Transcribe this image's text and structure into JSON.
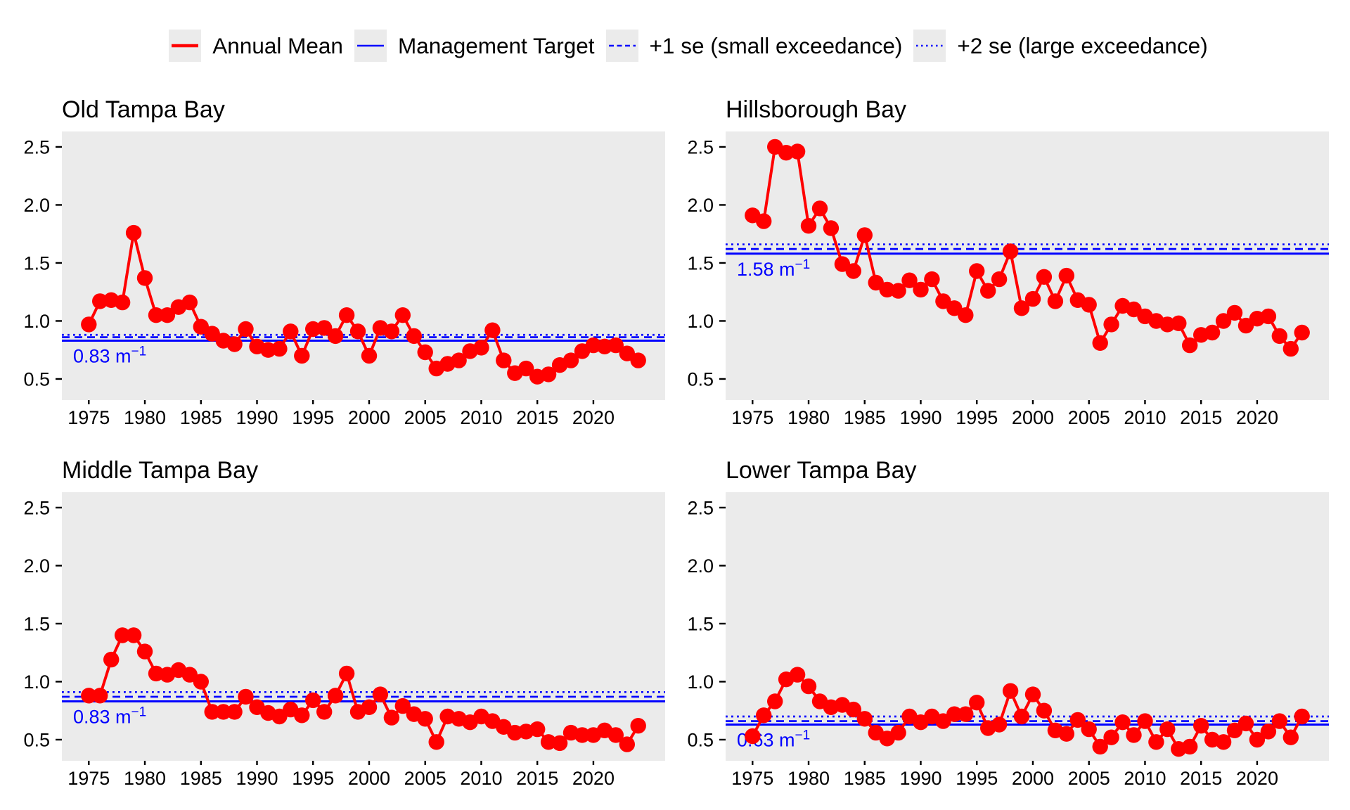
{
  "colors": {
    "series": "#FF0000",
    "reference": "#0000FF",
    "panel_background": "#EBEBEB",
    "legend_key_background": "#EBEBEB",
    "text": "#000000"
  },
  "legend": {
    "items": [
      {
        "label": "Annual Mean",
        "swatch": "red-solid"
      },
      {
        "label": "Management Target",
        "swatch": "blue-solid"
      },
      {
        "label": "+1 se (small exceedance)",
        "swatch": "blue-dashed"
      },
      {
        "label": "+2 se (large exceedance)",
        "swatch": "blue-dotted"
      }
    ]
  },
  "chart_data": [
    {
      "type": "line",
      "title": "Old Tampa Bay",
      "series_name": "Annual Mean",
      "x": [
        1975,
        1976,
        1977,
        1978,
        1979,
        1980,
        1981,
        1982,
        1983,
        1984,
        1985,
        1986,
        1987,
        1988,
        1989,
        1990,
        1991,
        1992,
        1993,
        1994,
        1995,
        1996,
        1997,
        1998,
        1999,
        2000,
        2001,
        2002,
        2003,
        2004,
        2005,
        2006,
        2007,
        2008,
        2009,
        2010,
        2011,
        2012,
        2013,
        2014,
        2015,
        2016,
        2017,
        2018,
        2019,
        2020,
        2021,
        2022,
        2023,
        2024
      ],
      "values": [
        0.97,
        1.17,
        1.18,
        1.16,
        1.76,
        1.37,
        1.05,
        1.05,
        1.12,
        1.16,
        0.95,
        0.89,
        0.83,
        0.8,
        0.93,
        0.78,
        0.75,
        0.76,
        0.91,
        0.7,
        0.93,
        0.94,
        0.87,
        1.05,
        0.91,
        0.7,
        0.94,
        0.91,
        1.05,
        0.87,
        0.73,
        0.59,
        0.63,
        0.66,
        0.74,
        0.77,
        0.92,
        0.66,
        0.55,
        0.59,
        0.52,
        0.54,
        0.62,
        0.66,
        0.74,
        0.79,
        0.78,
        0.79,
        0.72,
        0.66
      ],
      "management_target": 0.83,
      "plus1se": 0.86,
      "plus2se": 0.88,
      "annotation": {
        "text": "0.83 m",
        "sup": "−1"
      },
      "x_tick_labels": [
        "1975",
        "1980",
        "1985",
        "1990",
        "1995",
        "2000",
        "2005",
        "2010",
        "2015",
        "2020"
      ],
      "y_tick_labels": [
        "0.5",
        "1.0",
        "1.5",
        "2.0",
        "2.5"
      ],
      "xlim": [
        1972.6,
        2026.4
      ],
      "ylim": [
        0.318,
        2.633
      ],
      "grid": false,
      "legend_position": "top"
    },
    {
      "type": "line",
      "title": "Hillsborough Bay",
      "series_name": "Annual Mean",
      "x": [
        1975,
        1976,
        1977,
        1978,
        1979,
        1980,
        1981,
        1982,
        1983,
        1984,
        1985,
        1986,
        1987,
        1988,
        1989,
        1990,
        1991,
        1992,
        1993,
        1994,
        1995,
        1996,
        1997,
        1998,
        1999,
        2000,
        2001,
        2002,
        2003,
        2004,
        2005,
        2006,
        2007,
        2008,
        2009,
        2010,
        2011,
        2012,
        2013,
        2014,
        2015,
        2016,
        2017,
        2018,
        2019,
        2020,
        2021,
        2022,
        2023,
        2024
      ],
      "values": [
        1.91,
        1.86,
        2.5,
        2.45,
        2.46,
        1.82,
        1.97,
        1.8,
        1.49,
        1.43,
        1.74,
        1.33,
        1.27,
        1.26,
        1.35,
        1.27,
        1.36,
        1.17,
        1.11,
        1.05,
        1.43,
        1.26,
        1.36,
        1.6,
        1.11,
        1.19,
        1.38,
        1.17,
        1.39,
        1.18,
        1.14,
        0.81,
        0.97,
        1.13,
        1.1,
        1.04,
        1.0,
        0.97,
        0.98,
        0.79,
        0.88,
        0.9,
        1.0,
        1.07,
        0.96,
        1.02,
        1.04,
        0.87,
        0.76,
        0.9
      ],
      "management_target": 1.58,
      "plus1se": 1.62,
      "plus2se": 1.66,
      "annotation": {
        "text": "1.58 m",
        "sup": "−1"
      },
      "x_tick_labels": [
        "1975",
        "1980",
        "1985",
        "1990",
        "1995",
        "2000",
        "2005",
        "2010",
        "2015",
        "2020"
      ],
      "y_tick_labels": [
        "0.5",
        "1.0",
        "1.5",
        "2.0",
        "2.5"
      ],
      "xlim": [
        1972.6,
        2026.4
      ],
      "ylim": [
        0.318,
        2.633
      ],
      "grid": false,
      "legend_position": "top"
    },
    {
      "type": "line",
      "title": "Middle Tampa Bay",
      "series_name": "Annual Mean",
      "x": [
        1975,
        1976,
        1977,
        1978,
        1979,
        1980,
        1981,
        1982,
        1983,
        1984,
        1985,
        1986,
        1987,
        1988,
        1989,
        1990,
        1991,
        1992,
        1993,
        1994,
        1995,
        1996,
        1997,
        1998,
        1999,
        2000,
        2001,
        2002,
        2003,
        2004,
        2005,
        2006,
        2007,
        2008,
        2009,
        2010,
        2011,
        2012,
        2013,
        2014,
        2015,
        2016,
        2017,
        2018,
        2019,
        2020,
        2021,
        2022,
        2023,
        2024
      ],
      "values": [
        0.88,
        0.88,
        1.19,
        1.4,
        1.4,
        1.26,
        1.07,
        1.06,
        1.1,
        1.06,
        1.0,
        0.74,
        0.74,
        0.74,
        0.87,
        0.78,
        0.73,
        0.7,
        0.76,
        0.71,
        0.84,
        0.74,
        0.88,
        1.07,
        0.74,
        0.78,
        0.89,
        0.69,
        0.79,
        0.72,
        0.68,
        0.48,
        0.7,
        0.68,
        0.65,
        0.7,
        0.66,
        0.61,
        0.56,
        0.57,
        0.59,
        0.48,
        0.47,
        0.56,
        0.54,
        0.54,
        0.58,
        0.54,
        0.46,
        0.62
      ],
      "management_target": 0.83,
      "plus1se": 0.87,
      "plus2se": 0.91,
      "annotation": {
        "text": "0.83 m",
        "sup": "−1"
      },
      "x_tick_labels": [
        "1975",
        "1980",
        "1985",
        "1990",
        "1995",
        "2000",
        "2005",
        "2010",
        "2015",
        "2020"
      ],
      "y_tick_labels": [
        "0.5",
        "1.0",
        "1.5",
        "2.0",
        "2.5"
      ],
      "xlim": [
        1972.6,
        2026.4
      ],
      "ylim": [
        0.318,
        2.633
      ],
      "grid": false,
      "legend_position": "top"
    },
    {
      "type": "line",
      "title": "Lower Tampa Bay",
      "series_name": "Annual Mean",
      "x": [
        1975,
        1976,
        1977,
        1978,
        1979,
        1980,
        1981,
        1982,
        1983,
        1984,
        1985,
        1986,
        1987,
        1988,
        1989,
        1990,
        1991,
        1992,
        1993,
        1994,
        1995,
        1996,
        1997,
        1998,
        1999,
        2000,
        2001,
        2002,
        2003,
        2004,
        2005,
        2006,
        2007,
        2008,
        2009,
        2010,
        2011,
        2012,
        2013,
        2014,
        2015,
        2016,
        2017,
        2018,
        2019,
        2020,
        2021,
        2022,
        2023,
        2024
      ],
      "values": [
        0.53,
        0.71,
        0.83,
        1.02,
        1.06,
        0.96,
        0.83,
        0.78,
        0.8,
        0.76,
        0.68,
        0.56,
        0.51,
        0.56,
        0.7,
        0.65,
        0.7,
        0.66,
        0.72,
        0.72,
        0.82,
        0.6,
        0.63,
        0.92,
        0.7,
        0.89,
        0.75,
        0.58,
        0.55,
        0.67,
        0.59,
        0.44,
        0.52,
        0.65,
        0.54,
        0.66,
        0.48,
        0.59,
        0.42,
        0.44,
        0.62,
        0.5,
        0.48,
        0.58,
        0.64,
        0.5,
        0.57,
        0.66,
        0.52,
        0.7
      ],
      "management_target": 0.63,
      "plus1se": 0.66,
      "plus2se": 0.7,
      "annotation": {
        "text": "0.63 m",
        "sup": "−1"
      },
      "x_tick_labels": [
        "1975",
        "1980",
        "1985",
        "1990",
        "1995",
        "2000",
        "2005",
        "2010",
        "2015",
        "2020"
      ],
      "y_tick_labels": [
        "0.5",
        "1.0",
        "1.5",
        "2.0",
        "2.5"
      ],
      "xlim": [
        1972.6,
        2026.4
      ],
      "ylim": [
        0.318,
        2.633
      ],
      "grid": false,
      "legend_position": "top"
    }
  ]
}
